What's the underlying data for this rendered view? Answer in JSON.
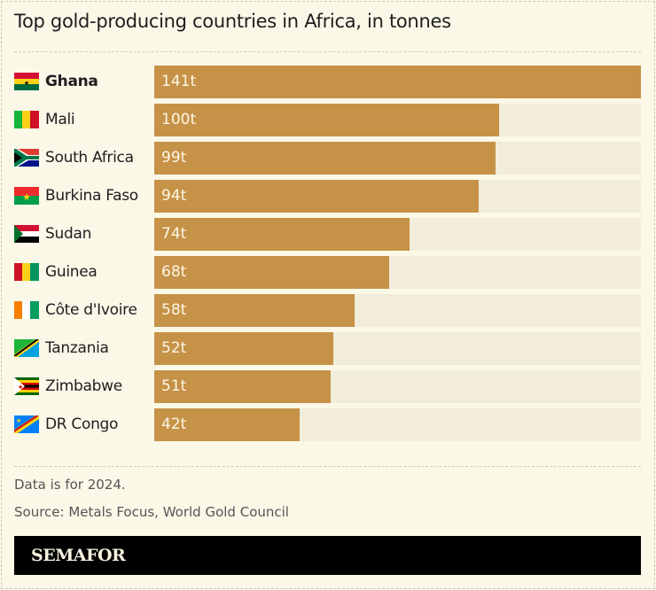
{
  "chart_data": {
    "type": "bar",
    "orientation": "horizontal",
    "title": "Top gold-producing countries in Africa, in tonnes",
    "categories": [
      "Ghana",
      "Mali",
      "South Africa",
      "Burkina Faso",
      "Sudan",
      "Guinea",
      "Côte d'Ivoire",
      "Tanzania",
      "Zimbabwe",
      "DR Congo"
    ],
    "values": [
      141,
      100,
      99,
      94,
      74,
      68,
      58,
      52,
      51,
      42
    ],
    "labels": [
      "141t",
      "100t",
      "99t",
      "94t",
      "74t",
      "68t",
      "58t",
      "52t",
      "51t",
      "42t"
    ],
    "flags": [
      "ghana-flag",
      "mali-flag",
      "south-africa-flag",
      "burkina-faso-flag",
      "sudan-flag",
      "guinea-flag",
      "cote-divoire-flag",
      "tanzania-flag",
      "zimbabwe-flag",
      "dr-congo-flag"
    ],
    "highlight": "Ghana",
    "xlim": [
      0,
      141
    ],
    "colors": {
      "bar": "#c69247",
      "track": "#f1edda",
      "background": "#fbf8e8"
    }
  },
  "footer": {
    "note": "Data is for 2024.",
    "source": "Source: Metals Focus, World Gold Council",
    "brand": "SEMAFOR"
  }
}
